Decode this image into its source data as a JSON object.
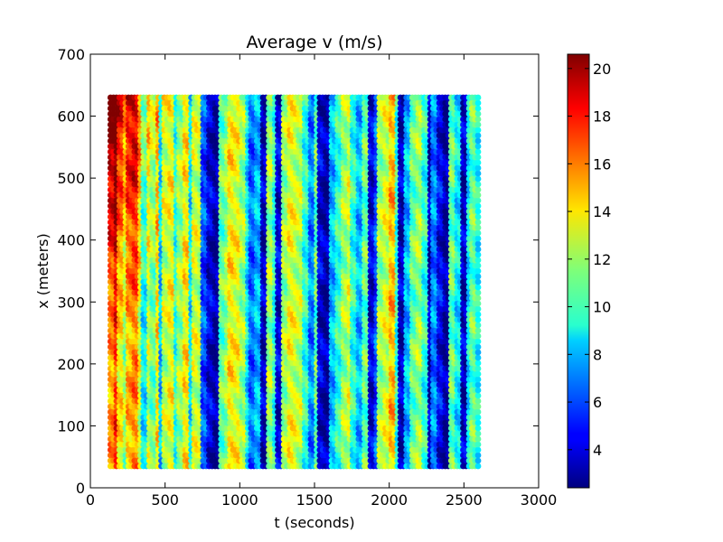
{
  "chart_data": {
    "type": "scatter",
    "title": "Average v (m/s)",
    "xlabel": "t (seconds)",
    "ylabel": "x (meters)",
    "xlim": [
      0,
      3000
    ],
    "ylim": [
      0,
      700
    ],
    "xticks": [
      "0",
      "500",
      "1000",
      "1500",
      "2000",
      "2500",
      "3000"
    ],
    "yticks": [
      "0",
      "100",
      "200",
      "300",
      "400",
      "500",
      "600",
      "700"
    ],
    "colormap": "jet",
    "colorbar": {
      "range": [
        2.4,
        20.6
      ],
      "ticks": [
        "4",
        "6",
        "8",
        "10",
        "12",
        "14",
        "16",
        "18",
        "20"
      ]
    },
    "grid": false,
    "sample_grid": {
      "t_start": 135,
      "t_end": 2600,
      "t_step": 20,
      "x_start": 35,
      "x_end": 630,
      "x_step": 8.75
    },
    "column_speeds": [
      {
        "t": 135,
        "v": 15.5
      },
      {
        "t": 175,
        "v": 17.5
      },
      {
        "t": 200,
        "v": 14
      },
      {
        "t": 235,
        "v": 12
      },
      {
        "t": 260,
        "v": 15
      },
      {
        "t": 300,
        "v": 16
      },
      {
        "t": 330,
        "v": 13
      },
      {
        "t": 360,
        "v": 9
      },
      {
        "t": 395,
        "v": 12.5
      },
      {
        "t": 430,
        "v": 11
      },
      {
        "t": 455,
        "v": 14
      },
      {
        "t": 480,
        "v": 8
      },
      {
        "t": 500,
        "v": 12.5
      },
      {
        "t": 540,
        "v": 13.5
      },
      {
        "t": 575,
        "v": 10
      },
      {
        "t": 610,
        "v": 12
      },
      {
        "t": 640,
        "v": 14
      },
      {
        "t": 670,
        "v": 9
      },
      {
        "t": 700,
        "v": 13
      },
      {
        "t": 735,
        "v": 12.5
      },
      {
        "t": 770,
        "v": 6
      },
      {
        "t": 810,
        "v": 4
      },
      {
        "t": 845,
        "v": 3
      },
      {
        "t": 880,
        "v": 11
      },
      {
        "t": 915,
        "v": 12
      },
      {
        "t": 950,
        "v": 14
      },
      {
        "t": 985,
        "v": 13.5
      },
      {
        "t": 1020,
        "v": 12
      },
      {
        "t": 1055,
        "v": 9
      },
      {
        "t": 1090,
        "v": 6.5
      },
      {
        "t": 1125,
        "v": 8
      },
      {
        "t": 1160,
        "v": 3.5
      },
      {
        "t": 1200,
        "v": 12
      },
      {
        "t": 1235,
        "v": 10
      },
      {
        "t": 1270,
        "v": 4
      },
      {
        "t": 1305,
        "v": 12
      },
      {
        "t": 1340,
        "v": 13.5
      },
      {
        "t": 1375,
        "v": 13
      },
      {
        "t": 1410,
        "v": 12.5
      },
      {
        "t": 1445,
        "v": 10
      },
      {
        "t": 1480,
        "v": 7
      },
      {
        "t": 1515,
        "v": 11
      },
      {
        "t": 1550,
        "v": 4
      },
      {
        "t": 1590,
        "v": 3
      },
      {
        "t": 1625,
        "v": 8
      },
      {
        "t": 1660,
        "v": 10
      },
      {
        "t": 1700,
        "v": 12
      },
      {
        "t": 1735,
        "v": 13
      },
      {
        "t": 1770,
        "v": 10
      },
      {
        "t": 1805,
        "v": 8
      },
      {
        "t": 1845,
        "v": 11
      },
      {
        "t": 1880,
        "v": 4
      },
      {
        "t": 1915,
        "v": 6
      },
      {
        "t": 1950,
        "v": 12
      },
      {
        "t": 1985,
        "v": 13
      },
      {
        "t": 2020,
        "v": 15
      },
      {
        "t": 2055,
        "v": 10
      },
      {
        "t": 2090,
        "v": 3.5
      },
      {
        "t": 2125,
        "v": 8
      },
      {
        "t": 2160,
        "v": 11
      },
      {
        "t": 2200,
        "v": 12
      },
      {
        "t": 2240,
        "v": 10
      },
      {
        "t": 2275,
        "v": 3.5
      },
      {
        "t": 2310,
        "v": 7
      },
      {
        "t": 2350,
        "v": 4.5
      },
      {
        "t": 2390,
        "v": 3
      },
      {
        "t": 2425,
        "v": 11
      },
      {
        "t": 2460,
        "v": 9
      },
      {
        "t": 2500,
        "v": 3.5
      },
      {
        "t": 2535,
        "v": 9
      },
      {
        "t": 2570,
        "v": 11
      },
      {
        "t": 2600,
        "v": 9.5
      }
    ]
  }
}
